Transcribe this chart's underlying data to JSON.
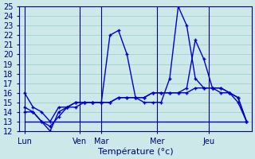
{
  "xlabel": "Température (°c)",
  "ylim": [
    12,
    25
  ],
  "xlim_min": -0.3,
  "xlim_max": 13.3,
  "background_color": "#cce8e8",
  "grid_color": "#99cccc",
  "line_color": "#0000cc",
  "xtick_labels": [
    "Lun",
    "Ven",
    "Mar",
    "Mer",
    "Jeu"
  ],
  "xtick_positions": [
    0.0,
    3.25,
    4.5,
    7.75,
    10.8
  ],
  "vline_positions": [
    0.0,
    3.25,
    4.5,
    7.75,
    10.8
  ],
  "series": [
    {
      "x": [
        0,
        0.5,
        1,
        1.5,
        2,
        2.5,
        3,
        3.5,
        4,
        4.5,
        5,
        5.5,
        6,
        6.5,
        7,
        7.5,
        8,
        8.5,
        9,
        9.5,
        10,
        10.5,
        11,
        11.5,
        12,
        12.5,
        13
      ],
      "y": [
        16.0,
        14.5,
        14.0,
        13.0,
        14.5,
        14.5,
        15.0,
        15.0,
        15.0,
        15.0,
        15.0,
        15.5,
        15.5,
        15.5,
        15.5,
        16.0,
        16.0,
        16.0,
        16.0,
        16.0,
        16.5,
        16.5,
        16.5,
        16.5,
        16.0,
        15.5,
        13.0
      ],
      "marker": "+"
    },
    {
      "x": [
        0,
        0.5,
        1,
        1.5,
        2,
        2.5,
        3,
        3.5,
        4,
        4.5,
        5,
        5.5,
        6,
        6.5,
        7,
        7.5,
        8,
        8.5,
        9,
        9.5,
        10,
        10.5,
        11,
        11.5,
        12,
        12.5,
        13
      ],
      "y": [
        14.5,
        14.0,
        13.0,
        12.0,
        14.0,
        14.5,
        15.0,
        15.0,
        15.0,
        15.0,
        22.0,
        22.5,
        20.0,
        15.5,
        15.0,
        15.0,
        15.0,
        17.5,
        25.0,
        23.0,
        17.5,
        16.5,
        16.5,
        16.0,
        16.0,
        15.5,
        13.0
      ],
      "marker": "+"
    },
    {
      "x": [
        0,
        0.5,
        1,
        1.5,
        2,
        2.5,
        3,
        3.5,
        4,
        4.5,
        5,
        5.5,
        6,
        6.5,
        7,
        7.5,
        8,
        8.5,
        9,
        9.5,
        10,
        10.5,
        11,
        11.5,
        12,
        12.5,
        13
      ],
      "y": [
        14.0,
        14.0,
        13.0,
        12.5,
        13.5,
        14.5,
        14.5,
        15.0,
        15.0,
        15.0,
        15.0,
        15.5,
        15.5,
        15.5,
        15.5,
        16.0,
        16.0,
        16.0,
        16.0,
        16.5,
        21.5,
        19.5,
        16.5,
        16.5,
        16.0,
        15.0,
        13.0
      ],
      "marker": "+"
    },
    {
      "x": [
        0,
        13
      ],
      "y": [
        13.0,
        13.0
      ],
      "marker": ""
    }
  ]
}
